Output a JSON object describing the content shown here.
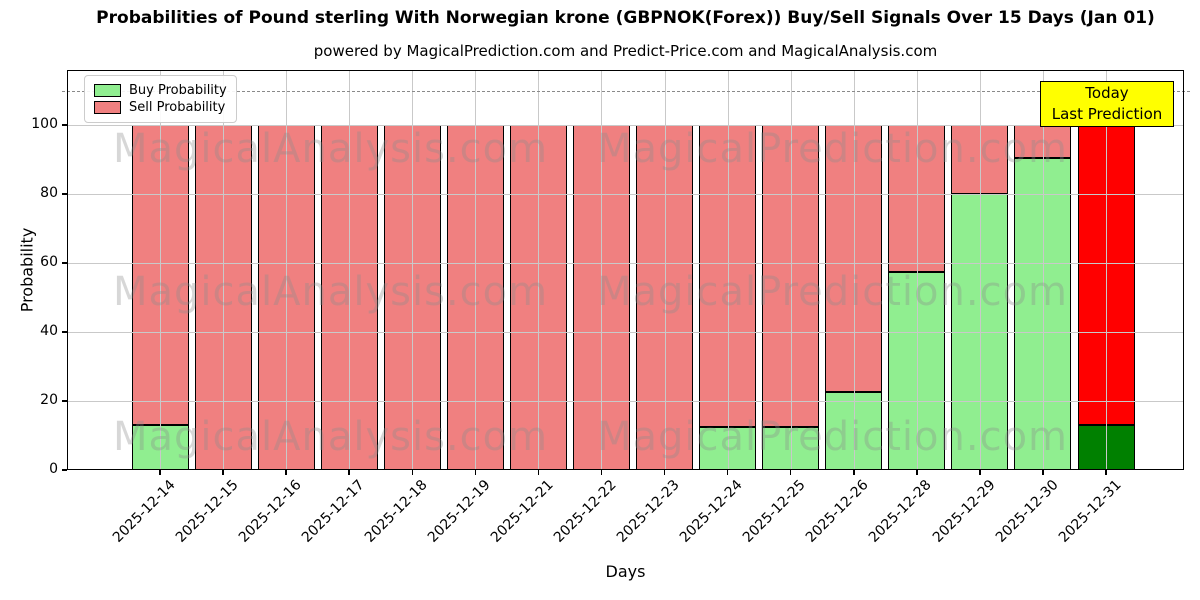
{
  "title": "Probabilities of Pound sterling With Norwegian krone (GBPNOK(Forex)) Buy/Sell Signals Over 15 Days (Jan 01)",
  "subtitle": "powered by MagicalPrediction.com and Predict-Price.com and MagicalAnalysis.com",
  "legend": {
    "items": [
      {
        "label": "Buy Probability",
        "color": "#90ee90"
      },
      {
        "label": "Sell Probability",
        "color": "#f08080"
      }
    ]
  },
  "annotation": {
    "line1": "Today",
    "line2": "Last Prediction",
    "bg_color": "#ffff00"
  },
  "axes": {
    "xlabel": "Days",
    "ylabel": "Probability",
    "yticks": [
      "0",
      "20",
      "40",
      "60",
      "80",
      "100"
    ],
    "ylim": [
      0,
      116
    ],
    "threshold_y": 110
  },
  "watermarks": {
    "left_text": "MagicalAnalysis.com",
    "right_text": "MagicalPrediction.com"
  },
  "chart_data": {
    "type": "bar",
    "stacked": true,
    "title": "Probabilities of Pound sterling With Norwegian krone (GBPNOK(Forex)) Buy/Sell Signals Over 15 Days (Jan 01)",
    "xlabel": "Days",
    "ylabel": "Probability",
    "ylim": [
      0,
      116
    ],
    "grid": true,
    "legend_position": "upper left",
    "categories": [
      "2025-12-14",
      "2025-12-15",
      "2025-12-16",
      "2025-12-17",
      "2025-12-18",
      "2025-12-19",
      "2025-12-21",
      "2025-12-22",
      "2025-12-23",
      "2025-12-24",
      "2025-12-25",
      "2025-12-26",
      "2025-12-28",
      "2025-12-29",
      "2025-12-30",
      "2025-12-31"
    ],
    "series": [
      {
        "name": "Buy Probability",
        "color": "#90ee90",
        "values": [
          13,
          0,
          0,
          0,
          0,
          0,
          0,
          0,
          0,
          12.5,
          12.5,
          22.5,
          57.5,
          80,
          90.5,
          13
        ]
      },
      {
        "name": "Sell Probability",
        "color": "#f08080",
        "values": [
          87,
          100,
          100,
          100,
          100,
          100,
          100,
          100,
          100,
          87.5,
          87.5,
          77.5,
          42.5,
          20,
          9.5,
          87
        ]
      }
    ],
    "today_index": 15,
    "today_colors": {
      "buy": "#008000",
      "sell": "#ff0000"
    }
  }
}
